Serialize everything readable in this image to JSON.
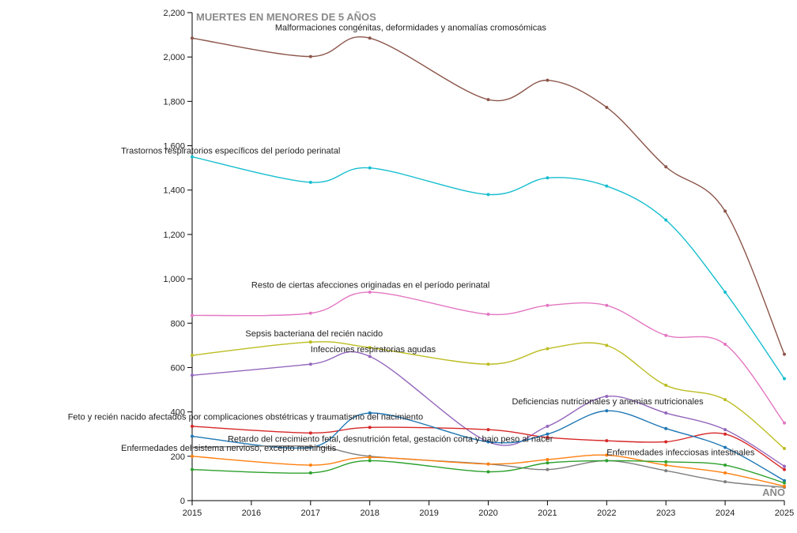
{
  "chart_data": {
    "type": "line",
    "title": "MUERTES EN MENORES DE 5 AÑOS",
    "xlabel": "AÑO",
    "ylabel": "",
    "x_ticks": [
      2015,
      2016,
      2017,
      2018,
      2019,
      2020,
      2021,
      2022,
      2023,
      2024,
      2025
    ],
    "x_range": [
      2015,
      2025
    ],
    "ylim": [
      0,
      2200
    ],
    "y_ticks": [
      0,
      200,
      400,
      600,
      800,
      1000,
      1200,
      1400,
      1600,
      1800,
      2000,
      2200
    ],
    "y_tick_labels": [
      "0",
      "200",
      "400",
      "600",
      "800",
      "1,000",
      "1,200",
      "1,400",
      "1,600",
      "1,800",
      "2,000",
      "2,200"
    ],
    "x_data": [
      2015,
      2017,
      2018,
      2020,
      2021,
      2022,
      2023,
      2024,
      2025
    ],
    "grid": false,
    "legend": "inline labels",
    "series": [
      {
        "name": "Malformaciones congénitas, deformidades y anomalías cromosómicas",
        "color": "#8c564b",
        "values": [
          2085,
          2002,
          2085,
          1808,
          1895,
          1773,
          1505,
          1305,
          660
        ],
        "label_anchor": [
          2016.4,
          2120
        ]
      },
      {
        "name": "Trastornos respiratorios específicos del período perinatal",
        "color": "#17becf",
        "values": [
          1550,
          1435,
          1500,
          1380,
          1455,
          1418,
          1265,
          940,
          550
        ],
        "label_anchor": [
          2013.8,
          1565
        ]
      },
      {
        "name": "Resto de ciertas afecciones originadas en el período perinatal",
        "color": "#e377c2",
        "values": [
          835,
          845,
          940,
          840,
          880,
          880,
          745,
          705,
          350
        ],
        "label_anchor": [
          2016.0,
          960
        ]
      },
      {
        "name": "Sepsis bacteriana del recién nacido",
        "color": "#bcbd22",
        "values": [
          655,
          715,
          690,
          615,
          685,
          700,
          520,
          455,
          235
        ],
        "label_anchor": [
          2015.9,
          740
        ]
      },
      {
        "name": "Infecciones respiratorias agudas",
        "color": "#9467bd",
        "values": [
          565,
          615,
          650,
          265,
          335,
          470,
          395,
          320,
          155
        ],
        "label_anchor": [
          2017.0,
          670
        ]
      },
      {
        "name": "Feto y recién nacido afectados por complicaciones obstétricas y traumatismo del nacimiento",
        "color": "#d62728",
        "values": [
          335,
          305,
          330,
          320,
          285,
          270,
          265,
          300,
          140
        ],
        "label_anchor": [
          2012.9,
          365
        ]
      },
      {
        "name": "Deficiencias nutricionales y anemias nutricionales",
        "color": "#1f77b4",
        "values": [
          290,
          240,
          395,
          265,
          300,
          405,
          325,
          240,
          90
        ],
        "label_anchor": [
          2020.4,
          435
        ]
      },
      {
        "name": "Retardo del crecimiento fetal, desnutrición fetal, gestación corta y bajo peso al nacer",
        "color": "#7f7f7f",
        "values": [
          240,
          245,
          200,
          165,
          140,
          180,
          135,
          85,
          60
        ],
        "label_anchor": [
          2015.6,
          265
        ]
      },
      {
        "name": "Enfermedades del sistema nervioso, excepto meningitis",
        "color": "#ff7f0e",
        "values": [
          200,
          160,
          195,
          165,
          185,
          205,
          160,
          125,
          65
        ],
        "label_anchor": [
          2013.8,
          225
        ]
      },
      {
        "name": "Enfermedades infecciosas intestinales",
        "color": "#2ca02c",
        "values": [
          140,
          125,
          180,
          130,
          170,
          180,
          175,
          160,
          80
        ],
        "label_anchor": [
          2022.0,
          205
        ]
      }
    ]
  }
}
